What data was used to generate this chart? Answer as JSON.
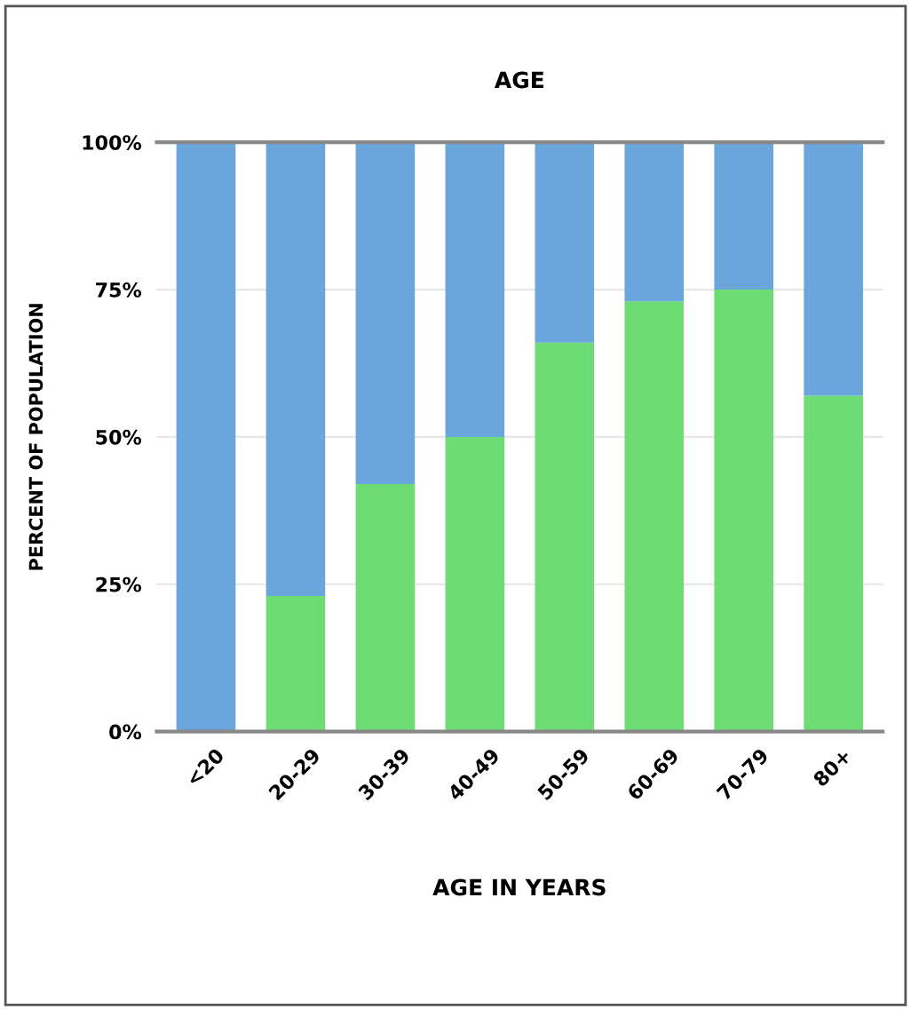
{
  "chart_data": {
    "type": "bar",
    "title": "AGE",
    "xlabel": "AGE IN YEARS",
    "ylabel": "PERCENT OF POPULATION",
    "categories": [
      "<20",
      "20-29",
      "30-39",
      "40-49",
      "50-59",
      "60-69",
      "70-79",
      "80+"
    ],
    "stacked": true,
    "series": [
      {
        "color": "#6ddc75",
        "values": [
          0,
          23,
          42,
          50,
          66,
          73,
          75,
          57
        ]
      },
      {
        "color": "#6aa6db",
        "values": [
          100,
          77,
          58,
          50,
          34,
          27,
          25,
          43
        ]
      }
    ],
    "ylim": [
      0,
      100
    ],
    "yticks": [
      {
        "value": 0,
        "label": "0%"
      },
      {
        "value": 25,
        "label": "25%"
      },
      {
        "value": 50,
        "label": "50%"
      },
      {
        "value": 75,
        "label": "75%"
      },
      {
        "value": 100,
        "label": "100%"
      }
    ],
    "grid": "y"
  }
}
